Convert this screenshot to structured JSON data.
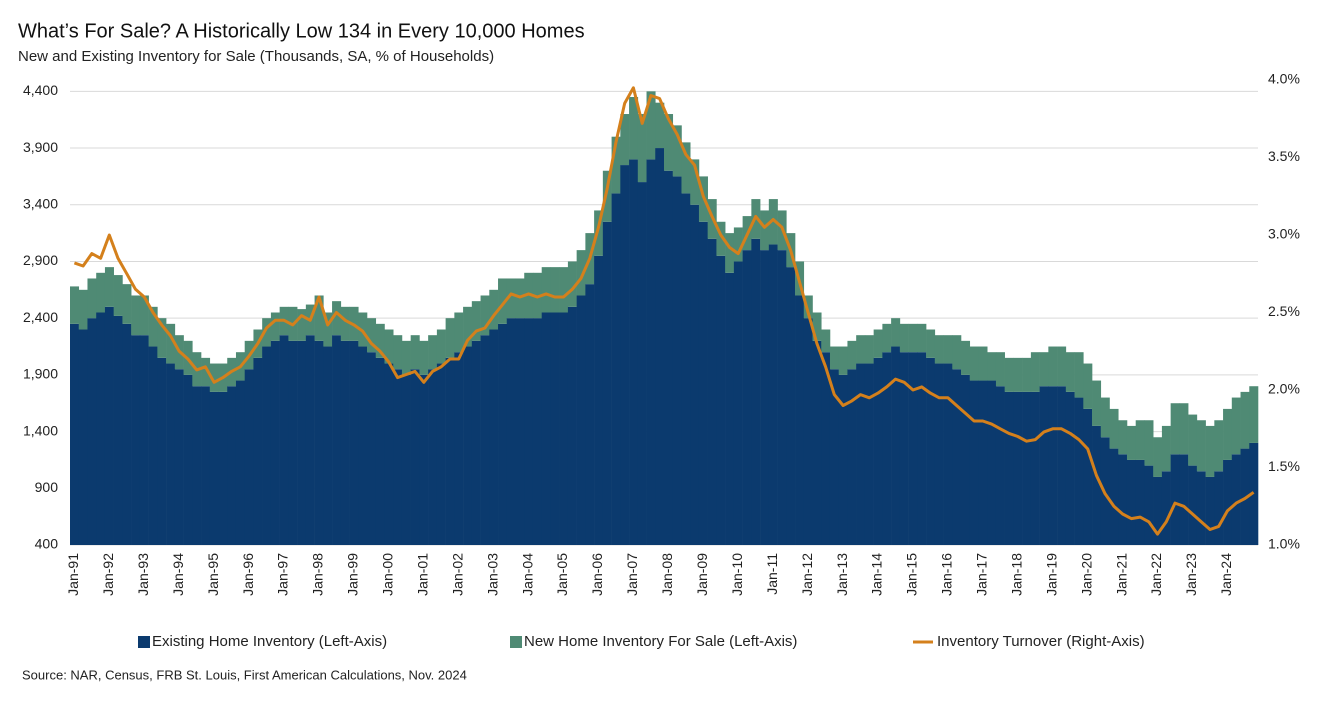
{
  "chart_data": {
    "type": "stacked-bar-line",
    "title": "What’s For Sale? A Historically Low 134 in Every 10,000 Homes",
    "subtitle": "New and Existing Inventory for Sale (Thousands, SA, % of Households)",
    "source": "Source: NAR, Census, FRB St. Louis, First American Calculations, Nov. 2024",
    "categories": [
      "Jan-91",
      null,
      null,
      null,
      "Jan-92",
      null,
      null,
      null,
      "Jan-93",
      null,
      null,
      null,
      "Jan-94",
      null,
      null,
      null,
      "Jan-95",
      null,
      null,
      null,
      "Jan-96",
      null,
      null,
      null,
      "Jan-97",
      null,
      null,
      null,
      "Jan-98",
      null,
      null,
      null,
      "Jan-99",
      null,
      null,
      null,
      "Jan-00",
      null,
      null,
      null,
      "Jan-01",
      null,
      null,
      null,
      "Jan-02",
      null,
      null,
      null,
      "Jan-03",
      null,
      null,
      null,
      "Jan-04",
      null,
      null,
      null,
      "Jan-05",
      null,
      null,
      null,
      "Jan-06",
      null,
      null,
      null,
      "Jan-07",
      null,
      null,
      null,
      "Jan-08",
      null,
      null,
      null,
      "Jan-09",
      null,
      null,
      null,
      "Jan-10",
      null,
      null,
      null,
      "Jan-11",
      null,
      null,
      null,
      "Jan-12",
      null,
      null,
      null,
      "Jan-13",
      null,
      null,
      null,
      "Jan-14",
      null,
      null,
      null,
      "Jan-15",
      null,
      null,
      null,
      "Jan-16",
      null,
      null,
      null,
      "Jan-17",
      null,
      null,
      null,
      "Jan-18",
      null,
      null,
      null,
      "Jan-19",
      null,
      null,
      null,
      "Jan-20",
      null,
      null,
      null,
      "Jan-21",
      null,
      null,
      null,
      "Jan-22",
      null,
      null,
      null,
      "Jan-23",
      null,
      null,
      null,
      "Jan-24",
      null,
      null,
      null
    ],
    "series": [
      {
        "name": "Existing Home Inventory (Left-Axis)",
        "color": "#0b3a6e",
        "stack": true,
        "values": [
          2350,
          2300,
          2400,
          2450,
          2500,
          2420,
          2350,
          2250,
          2250,
          2150,
          2050,
          2000,
          1950,
          1900,
          1800,
          1800,
          1750,
          1750,
          1800,
          1850,
          1950,
          2050,
          2150,
          2200,
          2250,
          2200,
          2200,
          2250,
          2200,
          2150,
          2250,
          2200,
          2200,
          2150,
          2100,
          2050,
          2000,
          1950,
          1900,
          1950,
          1900,
          1950,
          2000,
          2050,
          2100,
          2150,
          2200,
          2250,
          2300,
          2350,
          2400,
          2400,
          2400,
          2400,
          2450,
          2450,
          2450,
          2500,
          2600,
          2700,
          2950,
          3250,
          3500,
          3750,
          3800,
          3600,
          3800,
          3900,
          3700,
          3650,
          3500,
          3400,
          3250,
          3100,
          2950,
          2800,
          2900,
          3000,
          3100,
          3000,
          3050,
          3000,
          2850,
          2600,
          2400,
          2200,
          2100,
          1950,
          1900,
          1950,
          2000,
          2000,
          2050,
          2100,
          2150,
          2100,
          2100,
          2100,
          2050,
          2000,
          2000,
          1950,
          1900,
          1850,
          1850,
          1850,
          1800,
          1750,
          1750,
          1750,
          1750,
          1800,
          1800,
          1800,
          1750,
          1700,
          1600,
          1450,
          1350,
          1250,
          1200,
          1150,
          1150,
          1100,
          1000,
          1050,
          1200,
          1200,
          1100,
          1050,
          1000,
          1050,
          1150,
          1200,
          1250,
          1300
        ]
      },
      {
        "name": "New Home Inventory For Sale (Left-Axis)",
        "color": "#4f8a74",
        "stack": true,
        "values": [
          330,
          350,
          350,
          350,
          350,
          360,
          350,
          350,
          350,
          350,
          350,
          350,
          300,
          300,
          300,
          250,
          250,
          250,
          250,
          250,
          250,
          250,
          250,
          250,
          250,
          300,
          280,
          270,
          400,
          300,
          300,
          300,
          300,
          300,
          300,
          300,
          300,
          300,
          300,
          300,
          300,
          300,
          300,
          350,
          350,
          350,
          350,
          350,
          350,
          400,
          350,
          350,
          400,
          400,
          400,
          400,
          400,
          400,
          400,
          450,
          400,
          450,
          500,
          450,
          550,
          600,
          600,
          400,
          500,
          450,
          450,
          400,
          400,
          350,
          300,
          350,
          300,
          300,
          350,
          350,
          400,
          350,
          300,
          300,
          200,
          250,
          200,
          200,
          250,
          250,
          250,
          250,
          250,
          250,
          250,
          250,
          250,
          250,
          250,
          250,
          250,
          300,
          300,
          300,
          300,
          250,
          300,
          300,
          300,
          300,
          350,
          300,
          350,
          350,
          350,
          400,
          400,
          400,
          350,
          350,
          300,
          300,
          350,
          400,
          350,
          400,
          450,
          450,
          450,
          450,
          450,
          450,
          450,
          500,
          500,
          500
        ]
      },
      {
        "name": "Inventory Turnover (Right-Axis)",
        "color": "#d4801c",
        "axis": "y2",
        "values": [
          2.82,
          2.8,
          2.88,
          2.85,
          3.0,
          2.85,
          2.75,
          2.65,
          2.6,
          2.5,
          2.42,
          2.35,
          2.25,
          2.2,
          2.13,
          2.15,
          2.05,
          2.08,
          2.12,
          2.15,
          2.22,
          2.3,
          2.4,
          2.45,
          2.45,
          2.42,
          2.48,
          2.45,
          2.6,
          2.42,
          2.5,
          2.45,
          2.42,
          2.38,
          2.3,
          2.25,
          2.18,
          2.08,
          2.1,
          2.12,
          2.05,
          2.12,
          2.15,
          2.2,
          2.2,
          2.32,
          2.38,
          2.4,
          2.48,
          2.55,
          2.62,
          2.6,
          2.62,
          2.6,
          2.62,
          2.6,
          2.6,
          2.65,
          2.72,
          2.85,
          3.05,
          3.3,
          3.6,
          3.85,
          3.95,
          3.72,
          3.9,
          3.88,
          3.75,
          3.65,
          3.52,
          3.45,
          3.25,
          3.12,
          3.0,
          2.92,
          2.88,
          3.0,
          3.12,
          3.05,
          3.1,
          3.05,
          2.9,
          2.7,
          2.5,
          2.3,
          2.15,
          1.97,
          1.9,
          1.93,
          1.97,
          1.95,
          1.98,
          2.02,
          2.07,
          2.05,
          2.0,
          2.02,
          1.98,
          1.95,
          1.95,
          1.9,
          1.85,
          1.8,
          1.8,
          1.78,
          1.75,
          1.72,
          1.7,
          1.67,
          1.68,
          1.73,
          1.75,
          1.75,
          1.72,
          1.68,
          1.62,
          1.45,
          1.33,
          1.25,
          1.2,
          1.17,
          1.18,
          1.15,
          1.07,
          1.15,
          1.27,
          1.25,
          1.2,
          1.15,
          1.1,
          1.12,
          1.22,
          1.27,
          1.3,
          1.34
        ]
      }
    ],
    "ylim": [
      400,
      4500
    ],
    "yticks": [
      400,
      900,
      {
        "value": 1400,
        "label": "1,400"
      },
      {
        "value": 1900,
        "label": "1,900"
      },
      {
        "value": 2400,
        "label": "2,400"
      },
      {
        "value": 2900,
        "label": "2,900"
      },
      {
        "value": 3400,
        "label": "3,400"
      },
      {
        "value": 3900,
        "label": "3,900"
      },
      {
        "value": 4400,
        "label": "4,400"
      }
    ],
    "y2lim": [
      1.0,
      4.0
    ],
    "y2ticks": [
      {
        "value": 1.0,
        "label": "1.0%"
      },
      {
        "value": 1.5,
        "label": "1.5%"
      },
      {
        "value": 2.0,
        "label": "2.0%"
      },
      {
        "value": 2.5,
        "label": "2.5%"
      },
      {
        "value": 3.0,
        "label": "3.0%"
      },
      {
        "value": 3.5,
        "label": "3.5%"
      },
      {
        "value": 4.0,
        "label": "4.0%"
      }
    ],
    "grid": true,
    "legend": "bottom"
  }
}
